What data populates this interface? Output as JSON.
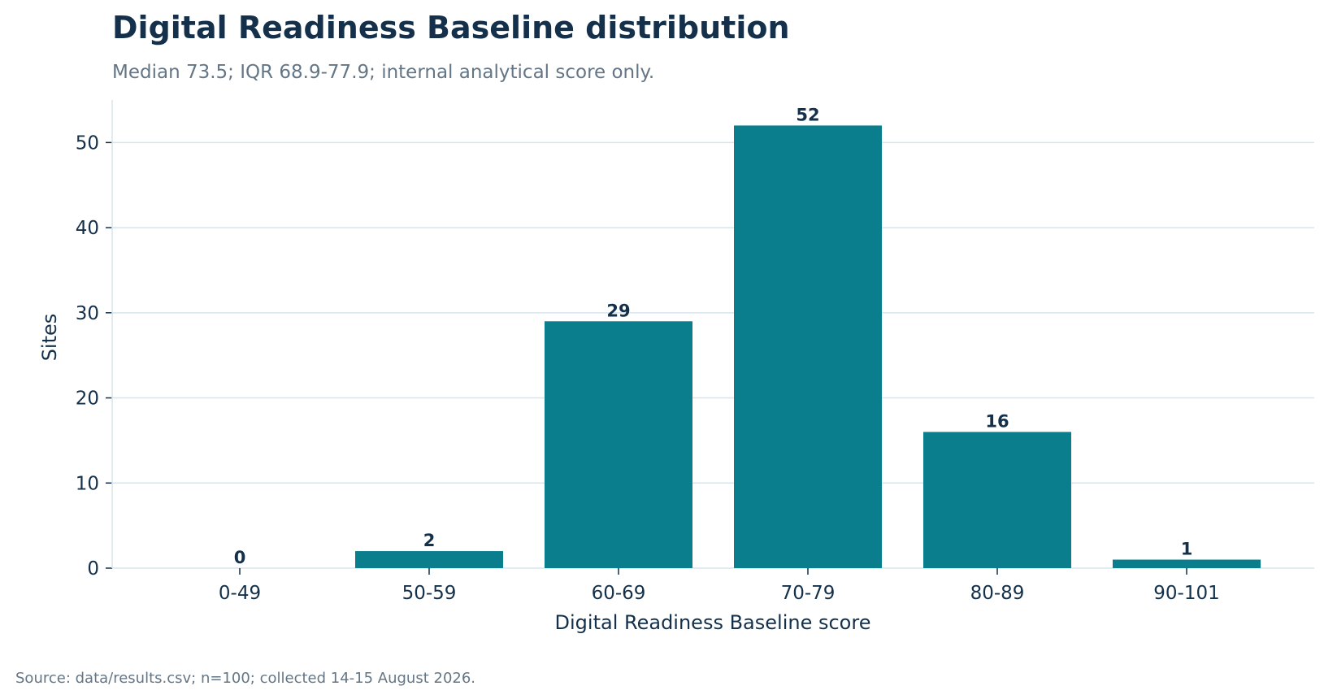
{
  "chart_data": {
    "type": "bar",
    "title": "Digital Readiness Baseline distribution",
    "subtitle": "Median 73.5; IQR 68.9-77.9; internal analytical score only.",
    "xlabel": "Digital Readiness Baseline score",
    "ylabel": "Sites",
    "categories": [
      "0-49",
      "50-59",
      "60-69",
      "70-79",
      "80-89",
      "90-101"
    ],
    "values": [
      0,
      2,
      29,
      52,
      16,
      1
    ],
    "ylim": [
      0,
      55
    ],
    "yticks": [
      0,
      10,
      20,
      30,
      40,
      50
    ],
    "grid": "horizontal",
    "legend": "none",
    "source": "Source: data/results.csv; n=100; collected 14-15 August 2026."
  },
  "colors": {
    "bar": "#0a7e8c",
    "text": "#14304a",
    "muted": "#647685",
    "grid": "#d8e5ec"
  }
}
